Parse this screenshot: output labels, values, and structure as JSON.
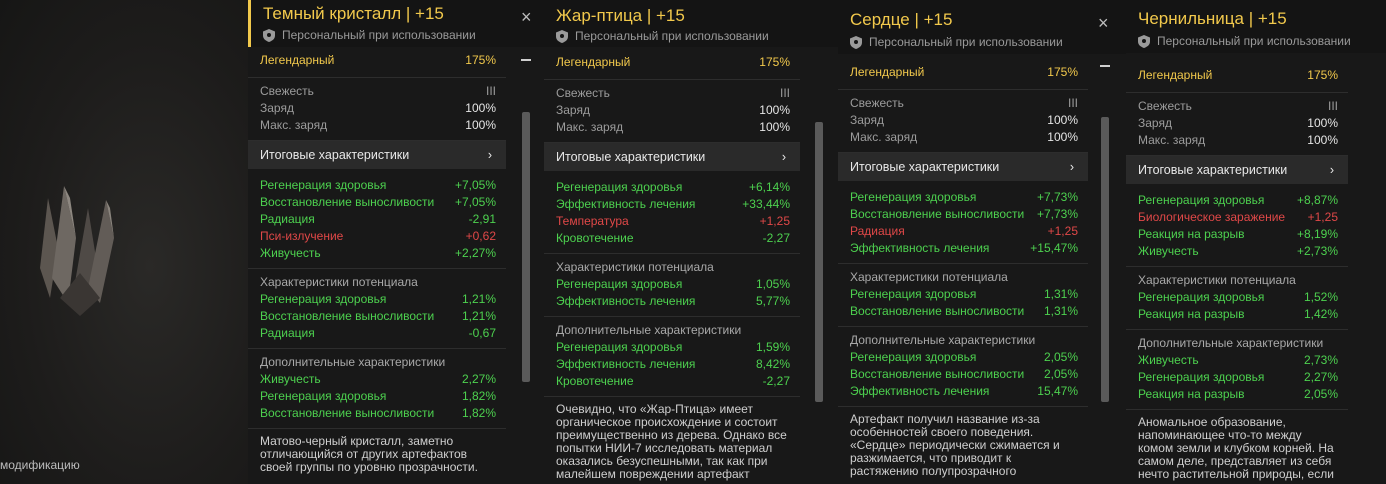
{
  "mod_label": "модификацию",
  "tooltips": [
    {
      "title": "Темный кристалл | +15",
      "subtitle": "Персональный при использовании",
      "close": "×",
      "rarity": "Легендарный",
      "rarity_value": "175%",
      "freshness": "Свежесть",
      "freshness_value": "III",
      "charge": "Заряд",
      "charge_value": "100%",
      "max_charge": "Макс. заряд",
      "max_charge_value": "100%",
      "section_title": "Итоговые характеристики",
      "chevron": "›",
      "final_stats": [
        {
          "label": "Регенерация здоровья",
          "value": "+7,05%",
          "color": "green"
        },
        {
          "label": "Восстановление выносливости",
          "value": "+7,05%",
          "color": "green"
        },
        {
          "label": "Радиация",
          "value": "-2,91",
          "color": "green"
        },
        {
          "label": "Пси-излучение",
          "value": "+0,62",
          "color": "red"
        },
        {
          "label": "Живучесть",
          "value": "+2,27%",
          "color": "green"
        }
      ],
      "potential_title": "Характеристики потенциала",
      "potential_stats": [
        {
          "label": "Регенерация здоровья",
          "value": "1,21%",
          "color": "green"
        },
        {
          "label": "Восстановление выносливости",
          "value": "1,21%",
          "color": "green"
        },
        {
          "label": "Радиация",
          "value": "-0,67",
          "color": "green"
        }
      ],
      "extra_title": "Дополнительные характеристики",
      "extra_stats": [
        {
          "label": "Живучесть",
          "value": "2,27%",
          "color": "green"
        },
        {
          "label": "Регенерация здоровья",
          "value": "1,82%",
          "color": "green"
        },
        {
          "label": "Восстановление выносливости",
          "value": "1,82%",
          "color": "green"
        }
      ],
      "description": "Матово-черный кристалл, заметно отличающийся от других артефактов своей группы по уровню прозрачности."
    },
    {
      "title": "Жар-птица | +15",
      "subtitle": "Персональный при использовании",
      "close": "",
      "rarity": "Легендарный",
      "rarity_value": "175%",
      "freshness": "Свежесть",
      "freshness_value": "III",
      "charge": "Заряд",
      "charge_value": "100%",
      "max_charge": "Макс. заряд",
      "max_charge_value": "100%",
      "section_title": "Итоговые характеристики",
      "chevron": "›",
      "final_stats": [
        {
          "label": "Регенерация здоровья",
          "value": "+6,14%",
          "color": "green"
        },
        {
          "label": "Эффективность лечения",
          "value": "+33,44%",
          "color": "green"
        },
        {
          "label": "Температура",
          "value": "+1,25",
          "color": "red"
        },
        {
          "label": "Кровотечение",
          "value": "-2,27",
          "color": "green"
        }
      ],
      "potential_title": "Характеристики потенциала",
      "potential_stats": [
        {
          "label": "Регенерация здоровья",
          "value": "1,05%",
          "color": "green"
        },
        {
          "label": "Эффективность лечения",
          "value": "5,77%",
          "color": "green"
        }
      ],
      "extra_title": "Дополнительные характеристики",
      "extra_stats": [
        {
          "label": "Регенерация здоровья",
          "value": "1,59%",
          "color": "green"
        },
        {
          "label": "Эффективность лечения",
          "value": "8,42%",
          "color": "green"
        },
        {
          "label": "Кровотечение",
          "value": "-2,27",
          "color": "green"
        }
      ],
      "description": "Очевидно, что «Жар-Птица» имеет органическое происхождение и состоит преимущественно из дерева. Однако все попытки НИИ-7 исследовать материал оказались безуспешными, так как при малейшем повреждении артефакт"
    },
    {
      "title": "Сердце | +15",
      "subtitle": "Персональный при использовании",
      "close": "×",
      "rarity": "Легендарный",
      "rarity_value": "175%",
      "freshness": "Свежесть",
      "freshness_value": "III",
      "charge": "Заряд",
      "charge_value": "100%",
      "max_charge": "Макс. заряд",
      "max_charge_value": "100%",
      "section_title": "Итоговые характеристики",
      "chevron": "›",
      "final_stats": [
        {
          "label": "Регенерация здоровья",
          "value": "+7,73%",
          "color": "green"
        },
        {
          "label": "Восстановление выносливости",
          "value": "+7,73%",
          "color": "green"
        },
        {
          "label": "Радиация",
          "value": "+1,25",
          "color": "red"
        },
        {
          "label": "Эффективность лечения",
          "value": "+15,47%",
          "color": "green"
        }
      ],
      "potential_title": "Характеристики потенциала",
      "potential_stats": [
        {
          "label": "Регенерация здоровья",
          "value": "1,31%",
          "color": "green"
        },
        {
          "label": "Восстановление выносливости",
          "value": "1,31%",
          "color": "green"
        }
      ],
      "extra_title": "Дополнительные характеристики",
      "extra_stats": [
        {
          "label": "Регенерация здоровья",
          "value": "2,05%",
          "color": "green"
        },
        {
          "label": "Восстановление выносливости",
          "value": "2,05%",
          "color": "green"
        },
        {
          "label": "Эффективность лечения",
          "value": "15,47%",
          "color": "green"
        }
      ],
      "description": "Артефакт получил название из-за особенностей своего поведения. «Сердце» периодически сжимается и разжимается, что приводит к растяжению полупрозрачного"
    },
    {
      "title": "Чернильница | +15",
      "subtitle": "Персональный при использовании",
      "close": "",
      "rarity": "Легендарный",
      "rarity_value": "175%",
      "freshness": "Свежесть",
      "freshness_value": "III",
      "charge": "Заряд",
      "charge_value": "100%",
      "max_charge": "Макс. заряд",
      "max_charge_value": "100%",
      "section_title": "Итоговые характеристики",
      "chevron": "›",
      "final_stats": [
        {
          "label": "Регенерация здоровья",
          "value": "+8,87%",
          "color": "green"
        },
        {
          "label": "Биологическое заражение",
          "value": "+1,25",
          "color": "red"
        },
        {
          "label": "Реакция на разрыв",
          "value": "+8,19%",
          "color": "green"
        },
        {
          "label": "Живучесть",
          "value": "+2,73%",
          "color": "green"
        }
      ],
      "potential_title": "Характеристики потенциала",
      "potential_stats": [
        {
          "label": "Регенерация здоровья",
          "value": "1,52%",
          "color": "green"
        },
        {
          "label": "Реакция на разрыв",
          "value": "1,42%",
          "color": "green"
        }
      ],
      "extra_title": "Дополнительные характеристики",
      "extra_stats": [
        {
          "label": "Живучесть",
          "value": "2,73%",
          "color": "green"
        },
        {
          "label": "Регенерация здоровья",
          "value": "2,27%",
          "color": "green"
        },
        {
          "label": "Реакция на разрыв",
          "value": "2,05%",
          "color": "green"
        }
      ],
      "description": "Аномальное образование, напоминающее что-то между комом земли и клубком корней. На самом деле, представляет из себя нечто растительной природы, если судить по"
    }
  ]
}
